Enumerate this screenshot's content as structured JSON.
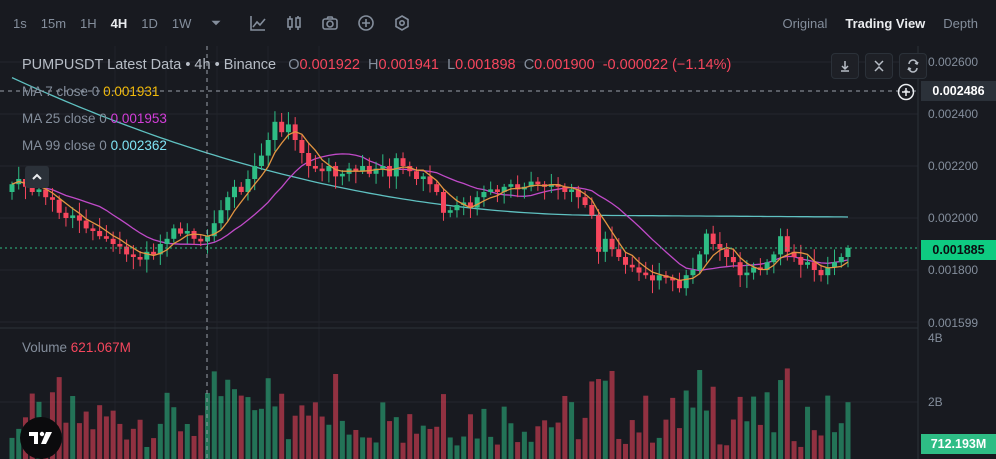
{
  "toolbar": {
    "intervals": [
      "1s",
      "15m",
      "1H",
      "4H",
      "1D",
      "1W"
    ],
    "active_interval": "4H",
    "views": [
      "Original",
      "Trading View",
      "Depth"
    ],
    "active_view": "Trading View"
  },
  "legend": {
    "pair": "PUMPUSDT Latest Data",
    "meta": "• 4h • Binance",
    "open_label": "O",
    "open": "0.001922",
    "high_label": "H",
    "high": "0.001941",
    "low_label": "L",
    "low": "0.001898",
    "close_label": "C",
    "close": "0.001900",
    "change": "-0.000022 (−1.14%)",
    "ma7_label": "MA 7 close 0",
    "ma7_value": "0.001931",
    "ma25_label": "MA 25 close 0",
    "ma25_value": "0.001953",
    "ma99_label": "MA 99 close 0",
    "ma99_value": "0.002362",
    "volume_label": "Volume",
    "volume_value": "621.067M"
  },
  "price_axis": {
    "ticks": [
      "0.002600",
      "0.002400",
      "0.002200",
      "0.002000",
      "0.001800",
      "0.001599"
    ],
    "crosshair_price": "0.002486",
    "last_price": "0.001885"
  },
  "volume_axis": {
    "ticks": [
      "4B",
      "2B"
    ],
    "last_volume": "712.193M"
  },
  "colors": {
    "up": "#2ebd85",
    "down": "#f6465d",
    "ma7": "#e39541",
    "ma25": "#c04ac8",
    "ma99": "#5fc1c1",
    "ma7_text": "#f0b90b",
    "ma25_text": "#d33ed9",
    "ma99_text": "#7fe3f5"
  },
  "icons": [
    "dropdown-icon",
    "chart-draw-icon",
    "indicators-icon",
    "camera-icon",
    "plus-circle-icon",
    "settings-icon",
    "download-icon",
    "collapse-icon",
    "refresh-icon",
    "chevron-up-icon",
    "tradingview-logo-icon"
  ]
}
